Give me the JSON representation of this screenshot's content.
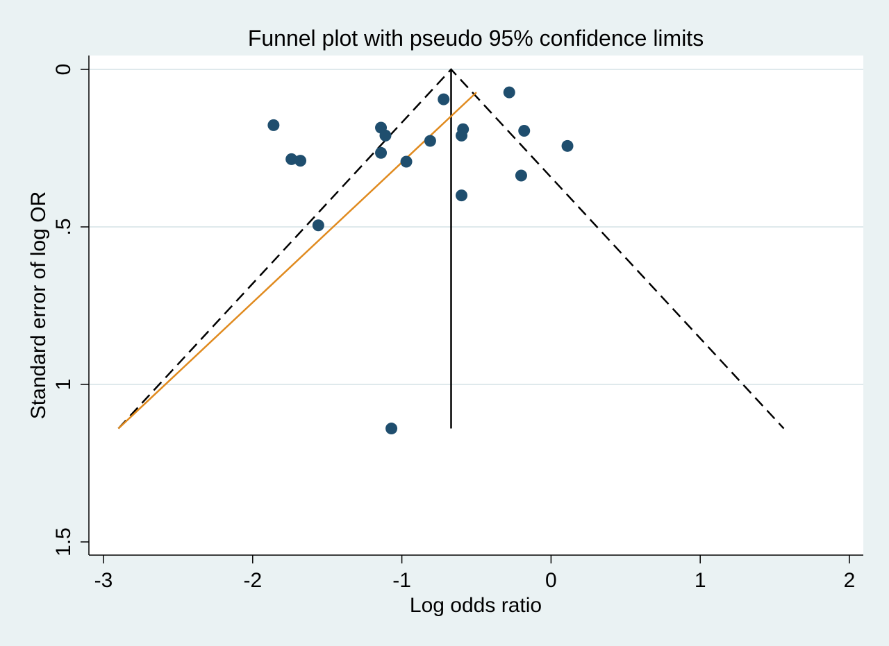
{
  "chart_data": {
    "type": "scatter",
    "title": "Funnel plot with pseudo 95% confidence limits",
    "xlabel": "Log odds ratio",
    "ylabel": "Standard error of log OR",
    "xlim": [
      -3,
      2
    ],
    "ylim": [
      0,
      1.5
    ],
    "y_reversed": true,
    "x_ticks": [
      {
        "value": -3,
        "label": "-3"
      },
      {
        "value": -2,
        "label": "-2"
      },
      {
        "value": -1,
        "label": "-1"
      },
      {
        "value": 0,
        "label": "0"
      },
      {
        "value": 1,
        "label": "1"
      },
      {
        "value": 2,
        "label": "2"
      }
    ],
    "y_ticks": [
      {
        "value": 0,
        "label": "0"
      },
      {
        "value": 0.5,
        "label": ".5"
      },
      {
        "value": 1,
        "label": "1"
      },
      {
        "value": 1.5,
        "label": "1.5"
      }
    ],
    "grid": "horizontal",
    "points": [
      {
        "x": -1.86,
        "y": 0.177
      },
      {
        "x": -1.74,
        "y": 0.285
      },
      {
        "x": -1.68,
        "y": 0.29
      },
      {
        "x": -1.56,
        "y": 0.495
      },
      {
        "x": -1.14,
        "y": 0.185
      },
      {
        "x": -1.11,
        "y": 0.21
      },
      {
        "x": -1.14,
        "y": 0.265
      },
      {
        "x": -0.97,
        "y": 0.293
      },
      {
        "x": -0.81,
        "y": 0.227
      },
      {
        "x": -0.72,
        "y": 0.095
      },
      {
        "x": -0.59,
        "y": 0.19
      },
      {
        "x": -0.6,
        "y": 0.21
      },
      {
        "x": -0.6,
        "y": 0.4
      },
      {
        "x": -0.28,
        "y": 0.073
      },
      {
        "x": -0.18,
        "y": 0.195
      },
      {
        "x": -0.2,
        "y": 0.337
      },
      {
        "x": 0.11,
        "y": 0.243
      },
      {
        "x": -1.07,
        "y": 1.14
      }
    ],
    "pooled_estimate": {
      "x": -0.67,
      "y_from": 0,
      "y_to": 1.14
    },
    "confidence_limits": {
      "apex_x": -0.67,
      "apex_y": 0,
      "left_x": -2.9,
      "right_x": 1.56,
      "bottom_y": 1.14
    },
    "regression_line": {
      "x1": -2.9,
      "y1": 1.14,
      "x2": -0.5,
      "y2": 0.073
    },
    "colors": {
      "background": "#eaf2f3",
      "plot_area": "#ffffff",
      "points": "#1f4e6e",
      "limits": "#000000",
      "pooled_line": "#000000",
      "regression": "#e08a1e",
      "grid": "#dfe9ec"
    }
  }
}
